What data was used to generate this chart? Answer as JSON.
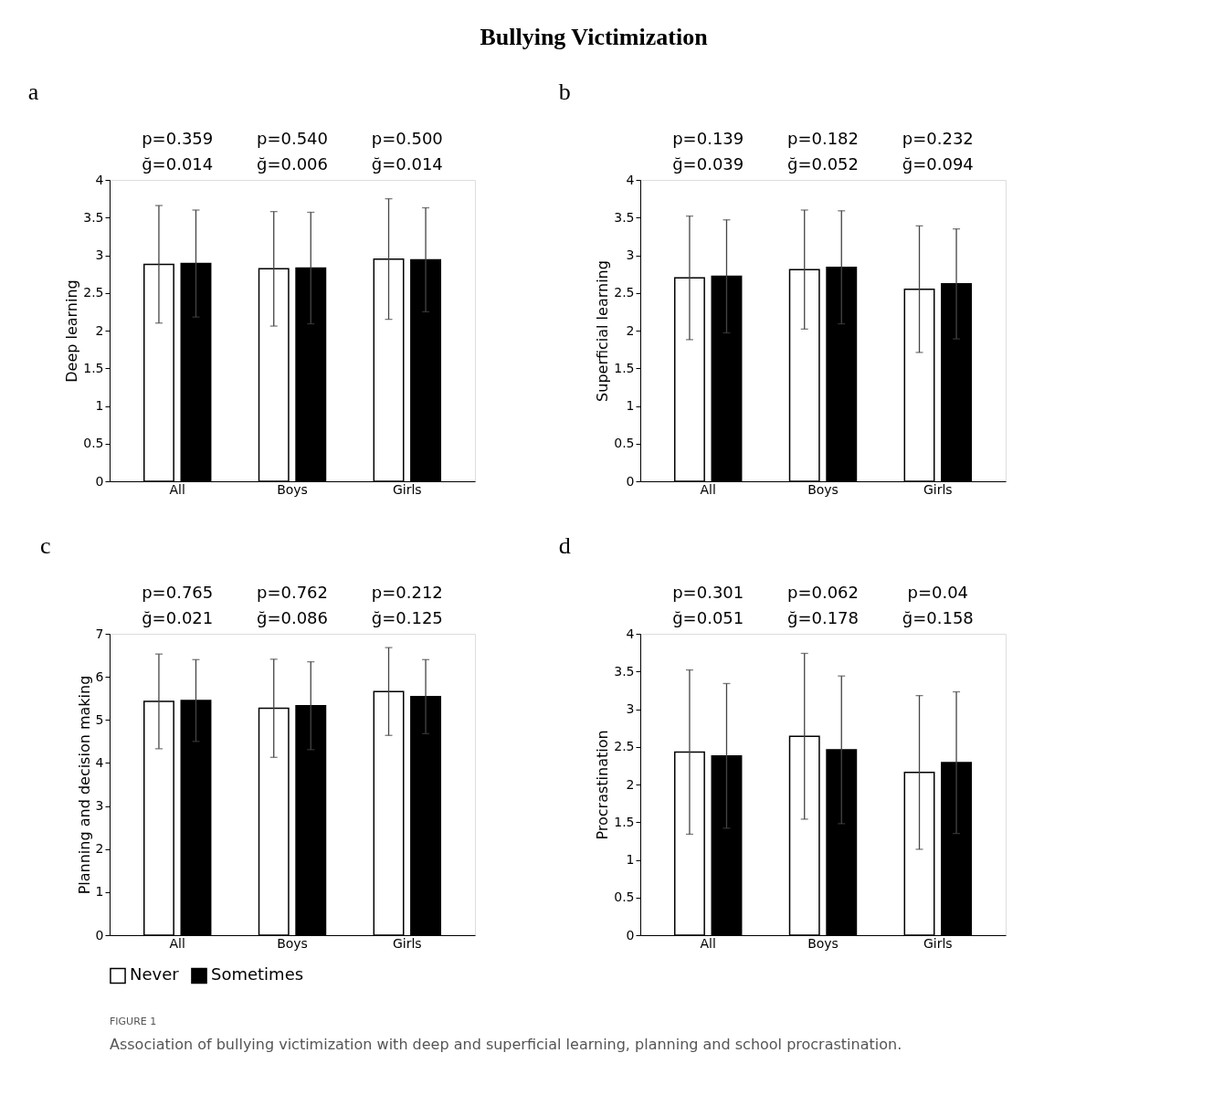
{
  "chart_data": [
    {
      "type": "other",
      "title": "Bullying Victimization",
      "annotations": [
        "FIGURE 1",
        "Association of bullying victimization with deep and superficial learning, planning and school procrastination."
      ]
    },
    {
      "type": "bar",
      "title": "a",
      "ylabel": "Deep learning",
      "categories": [
        "All",
        "Boys",
        "Girls"
      ],
      "ylim": [
        0,
        4
      ],
      "yticks": [
        0,
        0.5,
        1,
        1.5,
        2,
        2.5,
        3,
        3.5,
        4
      ],
      "grid": false,
      "legend": "bottom",
      "annotations": [
        "p=0.359",
        "ğ=0.014",
        "p=0.540",
        "ğ=0.006",
        "p=0.500",
        "ğ=0.014"
      ],
      "series": [
        {
          "name": "Never",
          "color": "#ffffff",
          "values": [
            2.88,
            2.82,
            2.95
          ],
          "errors": [
            0.78,
            0.76,
            0.8
          ]
        },
        {
          "name": "Sometimes",
          "color": "#000000",
          "values": [
            2.89,
            2.83,
            2.94
          ],
          "errors": [
            0.71,
            0.74,
            0.69
          ]
        }
      ]
    },
    {
      "type": "bar",
      "title": "b",
      "ylabel": "Superficial learning",
      "categories": [
        "All",
        "Boys",
        "Girls"
      ],
      "ylim": [
        0,
        4
      ],
      "yticks": [
        0,
        0.5,
        1,
        1.5,
        2,
        2.5,
        3,
        3.5,
        4
      ],
      "grid": false,
      "legend": "bottom",
      "annotations": [
        "p=0.139",
        "ğ=0.039",
        "p=0.182",
        "ğ=0.052",
        "p=0.232",
        "ğ=0.094"
      ],
      "series": [
        {
          "name": "Never",
          "color": "#ffffff",
          "values": [
            2.7,
            2.81,
            2.55
          ],
          "errors": [
            0.82,
            0.79,
            0.84
          ]
        },
        {
          "name": "Sometimes",
          "color": "#000000",
          "values": [
            2.72,
            2.84,
            2.62
          ],
          "errors": [
            0.75,
            0.75,
            0.73
          ]
        }
      ]
    },
    {
      "type": "bar",
      "title": "c",
      "ylabel": "Planning and decision making",
      "categories": [
        "All",
        "Boys",
        "Girls"
      ],
      "ylim": [
        0,
        7
      ],
      "yticks": [
        0,
        1,
        2,
        3,
        4,
        5,
        6,
        7
      ],
      "grid": false,
      "legend": "bottom",
      "annotations": [
        "p=0.765",
        "ğ=0.021",
        "p=0.762",
        "ğ=0.086",
        "p=0.212",
        "ğ=0.125"
      ],
      "series": [
        {
          "name": "Never",
          "color": "#ffffff",
          "values": [
            5.43,
            5.27,
            5.66
          ],
          "errors": [
            1.1,
            1.14,
            1.02
          ]
        },
        {
          "name": "Sometimes",
          "color": "#000000",
          "values": [
            5.45,
            5.33,
            5.54
          ],
          "errors": [
            0.95,
            1.02,
            0.86
          ]
        }
      ]
    },
    {
      "type": "bar",
      "title": "d",
      "ylabel": "Procrastination",
      "categories": [
        "All",
        "Boys",
        "Girls"
      ],
      "ylim": [
        0,
        4
      ],
      "yticks": [
        0,
        0.5,
        1,
        1.5,
        2,
        2.5,
        3,
        3.5,
        4
      ],
      "grid": false,
      "legend": "bottom",
      "annotations": [
        "p=0.301",
        "ğ=0.051",
        "p=0.062",
        "ğ=0.178",
        "p=0.04",
        "ğ=0.158"
      ],
      "series": [
        {
          "name": "Never",
          "color": "#ffffff",
          "values": [
            2.43,
            2.64,
            2.16
          ],
          "errors": [
            1.09,
            1.1,
            1.02
          ]
        },
        {
          "name": "Sometimes",
          "color": "#000000",
          "values": [
            2.38,
            2.46,
            2.29
          ],
          "errors": [
            0.96,
            0.98,
            0.94
          ]
        }
      ]
    }
  ]
}
